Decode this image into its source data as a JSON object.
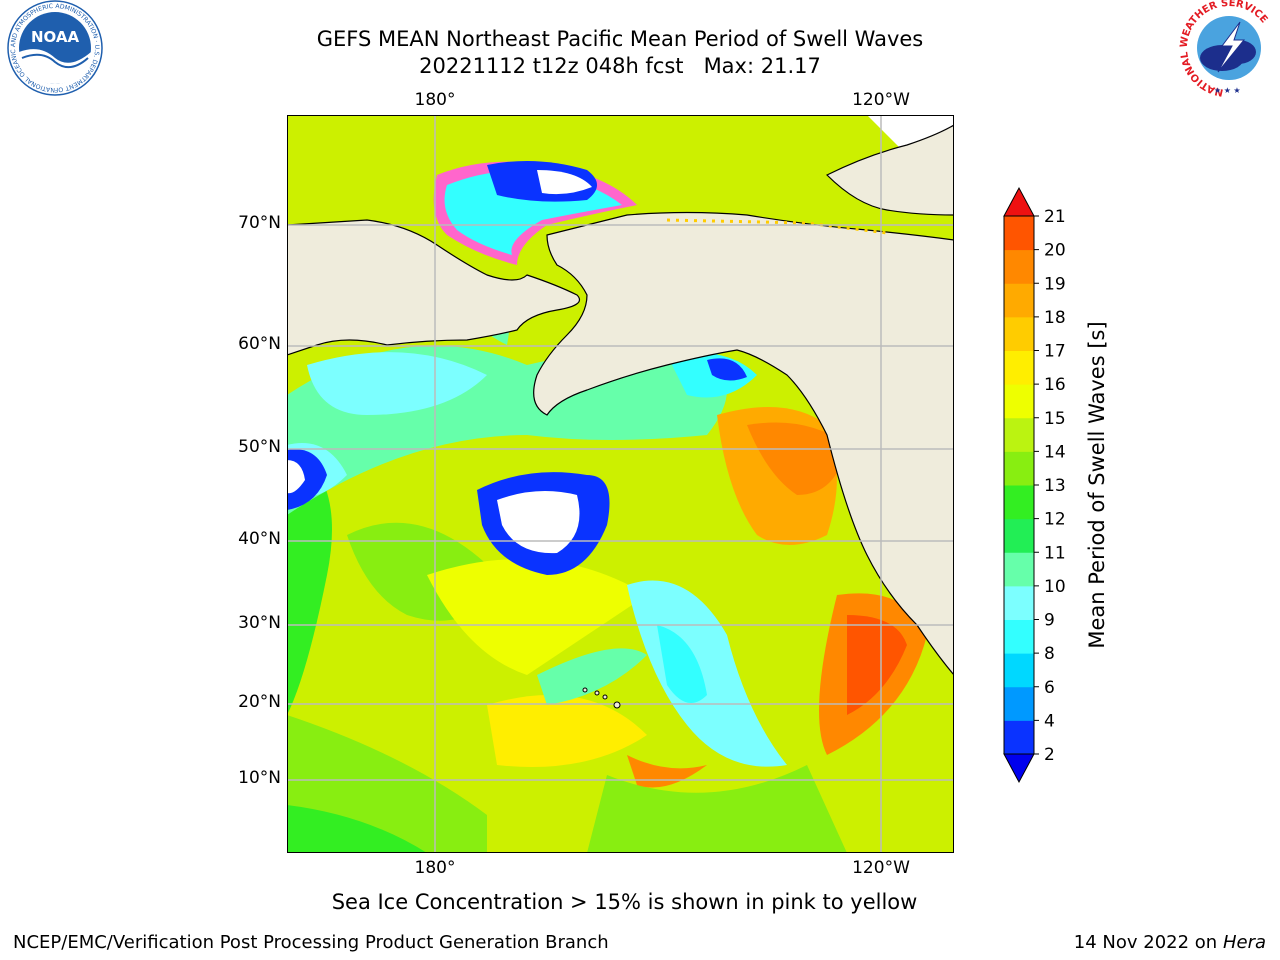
{
  "title": {
    "line1": "GEFS MEAN Northeast Pacific Mean Period of Swell Waves",
    "line2": "20221112 t12z 048h fcst   Max: 21.17"
  },
  "axes": {
    "lon_top": [
      "180°",
      "120°W"
    ],
    "lon_bottom": [
      "180°",
      "120°W"
    ],
    "lat": [
      "70°N",
      "60°N",
      "50°N",
      "40°N",
      "30°N",
      "20°N",
      "10°N"
    ]
  },
  "colorbar": {
    "label": "Mean Period of Swell Waves [s]",
    "ticks": [
      "2",
      "4",
      "6",
      "8",
      "9",
      "10",
      "11",
      "12",
      "13",
      "14",
      "15",
      "16",
      "17",
      "18",
      "19",
      "20",
      "21"
    ],
    "colors": [
      "#0a33ff",
      "#0099ff",
      "#00d8ff",
      "#33ffff",
      "#7cffff",
      "#66ffaa",
      "#22ee55",
      "#33ee22",
      "#88ee11",
      "#bbf311",
      "#eeff00",
      "#ffee00",
      "#ffcc00",
      "#ffaa00",
      "#ff8800",
      "#ff5500",
      "#ff2200"
    ],
    "under_color": "#0000ee",
    "over_color": "#ee1111"
  },
  "caption": "Sea Ice Concentration > 15% is shown in pink to yellow",
  "footer": {
    "left": "NCEP/EMC/Verification Post Processing Product Generation Branch",
    "right_prefix": "14 Nov 2022 on",
    "right_host": "Hera"
  },
  "logos": {
    "noaa_text": "NOAA",
    "noaa_ring": "NATIONAL OCEANIC AND ATMOSPHERIC ADMINISTRATION · U.S. DEPARTMENT OF COMMERCE",
    "nws_ring": "NATIONAL WEATHER SERVICE"
  },
  "colors": {
    "land": "#efecdc",
    "grid": "#bbbbbb",
    "noaa_blue": "#1f5fae",
    "nws_red": "#e31b23"
  }
}
